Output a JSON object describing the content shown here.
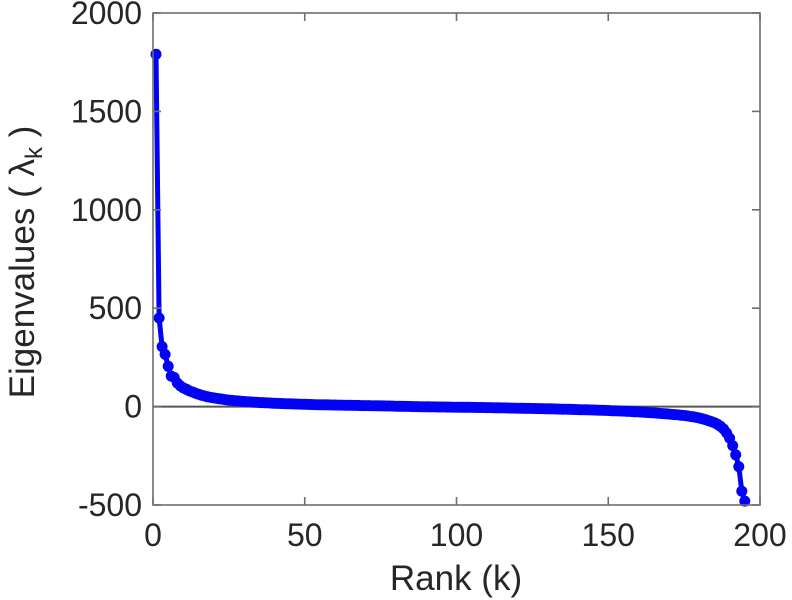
{
  "figure": {
    "background": "#ffffff"
  },
  "chart_data": {
    "type": "line",
    "title": "",
    "xlabel": "Rank (k)",
    "ylabel_parts": {
      "prefix": "Eigenvalues ( ",
      "symbol": "λ",
      "subscript": "k",
      "suffix": " )"
    },
    "xlim": [
      0,
      200
    ],
    "ylim": [
      -500,
      2000
    ],
    "xticks": [
      0,
      50,
      100,
      150,
      200
    ],
    "yticks": [
      -500,
      0,
      500,
      1000,
      1500,
      2000
    ],
    "grid": false,
    "legend": false,
    "zero_line": true,
    "colors": {
      "line": "#0202f5",
      "axis": "#6e6e6e",
      "zero_line": "#555555",
      "text": "#262626"
    },
    "marker": "circle",
    "series": [
      {
        "name": "eigenvalues",
        "x_start": 1,
        "values": [
          1790,
          450,
          305,
          265,
          205,
          155,
          148,
          120,
          105,
          95,
          88,
          80,
          74,
          68,
          63,
          58,
          54,
          50,
          47,
          44,
          41.8,
          39.6,
          37.4,
          35.2,
          33,
          31.6,
          30.2,
          28.8,
          27.4,
          26,
          25,
          24,
          23,
          22,
          21,
          20.2,
          19.4,
          18.6,
          17.8,
          17,
          16.4,
          15.8,
          15.2,
          14.6,
          14,
          13.5,
          13,
          12.5,
          12,
          11.5,
          11.1,
          10.7,
          10.3,
          9.9,
          9.5,
          9.2,
          8.9,
          8.6,
          8.3,
          8,
          7.7,
          7.4,
          7.1,
          6.8,
          6.5,
          6.2,
          5.9,
          5.6,
          5.3,
          5.1,
          4.9,
          4.7,
          4.5,
          4.2,
          4.0,
          3.6,
          3.2,
          2.8,
          2.4,
          2.0,
          1.7,
          1.4,
          1.1,
          0.8,
          0.5,
          0.2,
          -0.1,
          -0.3,
          -0.6,
          -0.8,
          -1.0,
          -1.3,
          -1.5,
          -1.8,
          -2.0,
          -2.2,
          -2.4,
          -2.6,
          -2.8,
          -3.0,
          -3.2,
          -3.4,
          -3.6,
          -3.8,
          -4.0,
          -4.2,
          -4.4,
          -4.6,
          -4.8,
          -5.0,
          -5.3,
          -5.6,
          -5.9,
          -6.2,
          -6.5,
          -6.8,
          -7.1,
          -7.4,
          -7.7,
          -8.0,
          -8.3,
          -8.6,
          -8.9,
          -9.2,
          -9.5,
          -9.8,
          -10.1,
          -10.4,
          -10.7,
          -11.0,
          -11.4,
          -11.8,
          -12.2,
          -12.6,
          -13.0,
          -13.4,
          -13.8,
          -14.2,
          -14.6,
          -15.0,
          -15.5,
          -16.0,
          -16.5,
          -17.0,
          -17.5,
          -18.0,
          -18.5,
          -19.0,
          -19.5,
          -20.0,
          -20.6,
          -21.2,
          -21.8,
          -22.4,
          -23.0,
          -23.8,
          -24.6,
          -25.4,
          -26.2,
          -27.0,
          -28.0,
          -29.0,
          -30.0,
          -31.0,
          -32.0,
          -33.2,
          -34.4,
          -35.6,
          -36.8,
          -38.0,
          -39.4,
          -40.8,
          -42.2,
          -43.6,
          -45.0,
          -47.3,
          -49.7,
          -52.0,
          -55.0,
          -58.0,
          -62.0,
          -66.0,
          -71.0,
          -76.0,
          -82.0,
          -90.0,
          -100,
          -114,
          -134,
          -160,
          -198,
          -245,
          -305,
          -430,
          -480
        ]
      }
    ]
  }
}
